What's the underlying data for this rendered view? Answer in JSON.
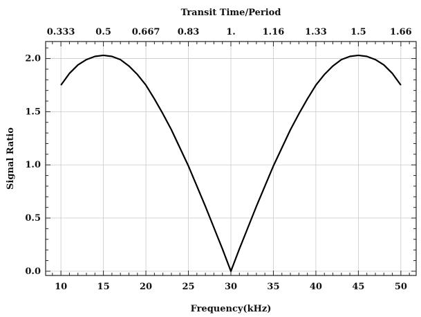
{
  "chart_data": {
    "type": "line",
    "title": "",
    "xlabel": "Frequency(kHz)",
    "ylabel": "Signal Ratio",
    "x2label": "Transit Time/Period",
    "xlim": [
      8.2,
      51.8
    ],
    "ylim": [
      -0.04,
      2.16
    ],
    "xticks": [
      10,
      15,
      20,
      25,
      30,
      35,
      40,
      45,
      50
    ],
    "xtick_labels": [
      "10",
      "15",
      "20",
      "25",
      "30",
      "35",
      "40",
      "45",
      "50"
    ],
    "yticks": [
      0.0,
      0.5,
      1.0,
      1.5,
      2.0
    ],
    "ytick_labels": [
      "0.0",
      "0.5",
      "1.0",
      "1.5",
      "2.0"
    ],
    "x2ticks": [
      10,
      15,
      20,
      25,
      30,
      35,
      40,
      45,
      50
    ],
    "x2tick_labels": [
      "0.333",
      "0.5",
      "0.667",
      "0.83",
      "1.",
      "1.16",
      "1.33",
      "1.5",
      "1.66"
    ],
    "grid": true,
    "series": [
      {
        "x": [
          10,
          11,
          12,
          13,
          14,
          15,
          16,
          17,
          18,
          19,
          20,
          21,
          22,
          23,
          24,
          25,
          26,
          27,
          28,
          29,
          30,
          31,
          32,
          33,
          34,
          35,
          36,
          37,
          38,
          39,
          40,
          41,
          42,
          43,
          44,
          45,
          46,
          47,
          48,
          49,
          50
        ],
        "y": [
          1.75,
          1.86,
          1.94,
          1.99,
          2.02,
          2.03,
          2.02,
          1.99,
          1.93,
          1.85,
          1.75,
          1.62,
          1.48,
          1.33,
          1.16,
          0.99,
          0.8,
          0.61,
          0.41,
          0.21,
          0.0,
          0.21,
          0.41,
          0.61,
          0.8,
          0.99,
          1.16,
          1.33,
          1.48,
          1.62,
          1.75,
          1.85,
          1.93,
          1.99,
          2.02,
          2.03,
          2.02,
          1.99,
          1.94,
          1.86,
          1.75
        ]
      }
    ]
  }
}
